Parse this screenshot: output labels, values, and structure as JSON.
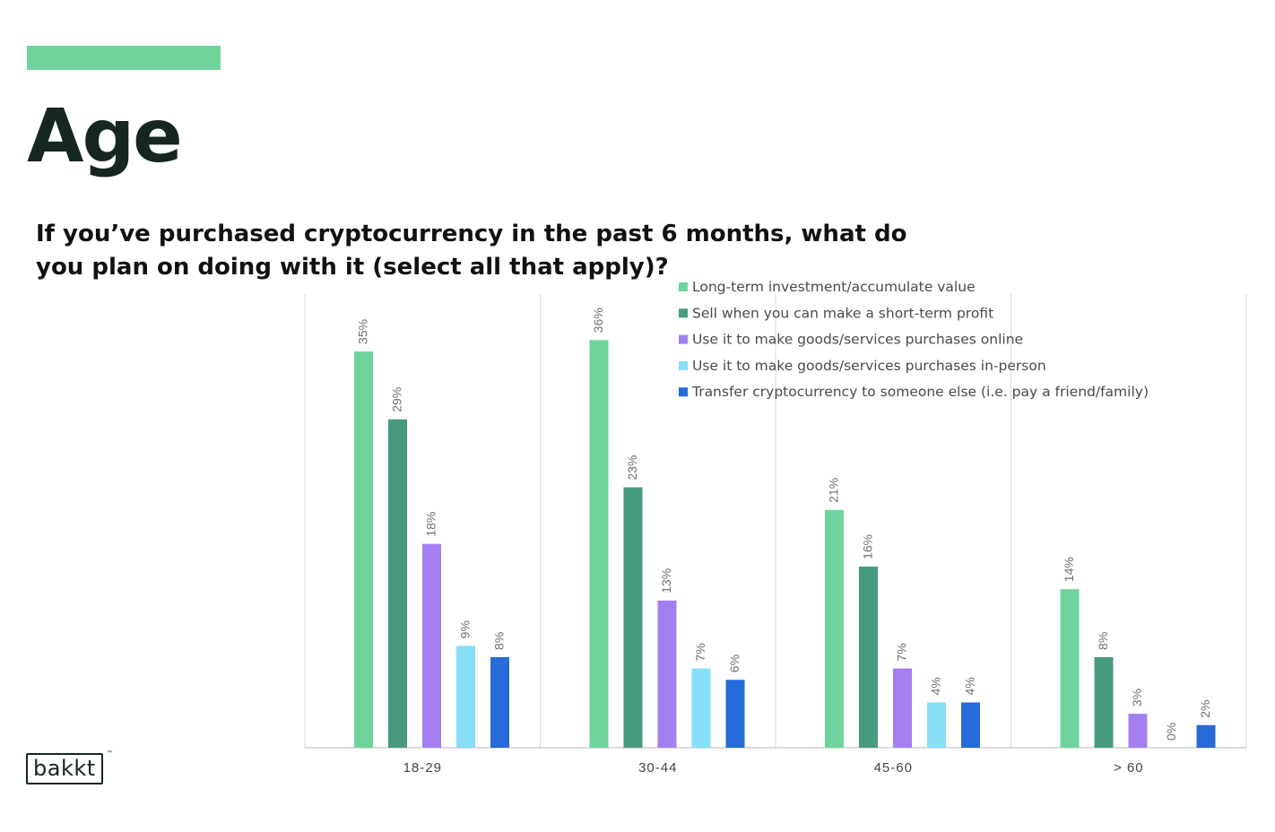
{
  "header": {
    "title": "Age",
    "question": "If you’ve purchased cryptocurrency in the past 6 months, what do you plan on doing with it (select all that apply)?",
    "accent_color": "#6fd49c"
  },
  "logo": {
    "text": "bakkt",
    "trademark": "™"
  },
  "chart_data": {
    "type": "bar",
    "title": "",
    "xlabel": "",
    "ylabel": "",
    "ylim": [
      0,
      40
    ],
    "grid": false,
    "legend_position": "top-right",
    "categories": [
      "18-29",
      "30-44",
      "45-60",
      "> 60"
    ],
    "series": [
      {
        "name": "Long-term investment/accumulate value",
        "color": "#6fd49c",
        "values": [
          35,
          36,
          21,
          14
        ],
        "labels": [
          "35%",
          "36%",
          "21%",
          "14%"
        ]
      },
      {
        "name": "Sell when you can make a short-term profit",
        "color": "#469b7e",
        "values": [
          29,
          23,
          16,
          8
        ],
        "labels": [
          "29%",
          "23%",
          "16%",
          "8%"
        ]
      },
      {
        "name": "Use it to make goods/services purchases online",
        "color": "#a47ff2",
        "values": [
          18,
          13,
          7,
          3
        ],
        "labels": [
          "18%",
          "13%",
          "7%",
          "3%"
        ]
      },
      {
        "name": "Use it to make goods/services purchases in-person",
        "color": "#86dff7",
        "values": [
          9,
          7,
          4,
          0
        ],
        "labels": [
          "9%",
          "7%",
          "4%",
          "0%"
        ]
      },
      {
        "name": "Transfer cryptocurrency to someone else (i.e. pay a friend/family)",
        "color": "#276bd8",
        "values": [
          8,
          6,
          4,
          2
        ],
        "labels": [
          "8%",
          "6%",
          "4%",
          "2%"
        ]
      }
    ]
  }
}
